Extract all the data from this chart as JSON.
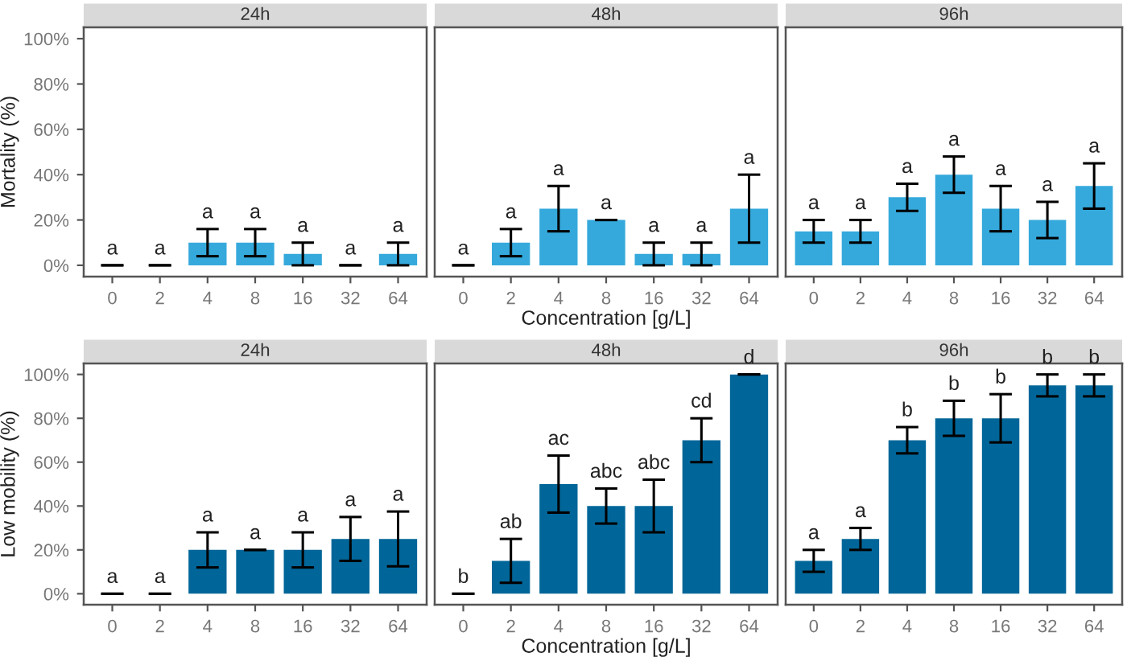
{
  "chart_data": [
    {
      "type": "bar",
      "title": "24h",
      "ylabel": "Mortality (%)",
      "categories": [
        "0",
        "2",
        "4",
        "8",
        "16",
        "32",
        "64"
      ],
      "values": [
        0,
        0,
        10,
        10,
        5,
        0,
        5
      ],
      "errors": [
        0,
        0,
        6,
        6,
        5,
        0,
        5
      ],
      "color": "#35a9dc",
      "ylim": [
        -5,
        105
      ],
      "yticks": [
        {
          "value": 0,
          "label": "0%"
        },
        {
          "value": 20,
          "label": "20%"
        },
        {
          "value": 40,
          "label": "40%"
        },
        {
          "value": 60,
          "label": "60%"
        },
        {
          "value": 80,
          "label": "80%"
        },
        {
          "value": 100,
          "label": "100%"
        }
      ],
      "grid": false,
      "annotations": [
        {
          "text": "a",
          "x": "0",
          "y": 0
        },
        {
          "text": "a",
          "x": "2",
          "y": 0
        },
        {
          "text": "a",
          "x": "4",
          "y": 16
        },
        {
          "text": "a",
          "x": "8",
          "y": 16
        },
        {
          "text": "a",
          "x": "16",
          "y": 10
        },
        {
          "text": "a",
          "x": "32",
          "y": 0
        },
        {
          "text": "a",
          "x": "64",
          "y": 10
        }
      ]
    },
    {
      "type": "bar",
      "title": "48h",
      "xlabel": "Concentration [g/L]",
      "categories": [
        "0",
        "2",
        "4",
        "8",
        "16",
        "32",
        "64"
      ],
      "values": [
        0,
        10,
        25,
        20,
        5,
        5,
        25
      ],
      "errors": [
        0,
        6,
        10,
        0,
        5,
        5,
        15
      ],
      "color": "#35a9dc",
      "ylim": [
        -5,
        105
      ],
      "tick_labels": "x",
      "grid": false,
      "annotations": [
        {
          "text": "a",
          "x": "0",
          "y": 0
        },
        {
          "text": "a",
          "x": "2",
          "y": 16
        },
        {
          "text": "a",
          "x": "4",
          "y": 35
        },
        {
          "text": "a",
          "x": "8",
          "y": 20
        },
        {
          "text": "a",
          "x": "16",
          "y": 10
        },
        {
          "text": "a",
          "x": "32",
          "y": 10
        },
        {
          "text": "a",
          "x": "64",
          "y": 40
        }
      ]
    },
    {
      "type": "bar",
      "title": "96h",
      "categories": [
        "0",
        "2",
        "4",
        "8",
        "16",
        "32",
        "64"
      ],
      "values": [
        15,
        15,
        30,
        40,
        25,
        20,
        35
      ],
      "errors": [
        5,
        5,
        6,
        8,
        10,
        8,
        10
      ],
      "color": "#35a9dc",
      "ylim": [
        -5,
        105
      ],
      "tick_labels": "x",
      "grid": false,
      "annotations": [
        {
          "text": "a",
          "x": "0",
          "y": 20
        },
        {
          "text": "a",
          "x": "2",
          "y": 20
        },
        {
          "text": "a",
          "x": "4",
          "y": 36
        },
        {
          "text": "a",
          "x": "8",
          "y": 48
        },
        {
          "text": "a",
          "x": "16",
          "y": 35
        },
        {
          "text": "a",
          "x": "32",
          "y": 28
        },
        {
          "text": "a",
          "x": "64",
          "y": 45
        }
      ]
    },
    {
      "type": "bar",
      "title": "24h",
      "ylabel": "Low mobility (%)",
      "categories": [
        "0",
        "2",
        "4",
        "8",
        "16",
        "32",
        "64"
      ],
      "values": [
        0,
        0,
        20,
        20,
        20,
        25,
        25
      ],
      "errors": [
        0,
        0,
        8,
        0,
        8,
        10,
        12.5
      ],
      "color": "#006699",
      "ylim": [
        -5,
        105
      ],
      "yticks": [
        {
          "value": 0,
          "label": "0%"
        },
        {
          "value": 20,
          "label": "20%"
        },
        {
          "value": 40,
          "label": "40%"
        },
        {
          "value": 60,
          "label": "60%"
        },
        {
          "value": 80,
          "label": "80%"
        },
        {
          "value": 100,
          "label": "100%"
        }
      ],
      "grid": false,
      "annotations": [
        {
          "text": "a",
          "x": "0",
          "y": 0
        },
        {
          "text": "a",
          "x": "2",
          "y": 0
        },
        {
          "text": "a",
          "x": "4",
          "y": 28
        },
        {
          "text": "a",
          "x": "8",
          "y": 20
        },
        {
          "text": "a",
          "x": "16",
          "y": 28
        },
        {
          "text": "a",
          "x": "32",
          "y": 35
        },
        {
          "text": "a",
          "x": "64",
          "y": 37.5
        }
      ]
    },
    {
      "type": "bar",
      "title": "48h",
      "xlabel": "Concentration [g/L]",
      "categories": [
        "0",
        "2",
        "4",
        "8",
        "16",
        "32",
        "64"
      ],
      "values": [
        0,
        15,
        50,
        40,
        40,
        70,
        100
      ],
      "errors": [
        0,
        10,
        13,
        8,
        12,
        10,
        0
      ],
      "color": "#006699",
      "ylim": [
        -5,
        105
      ],
      "tick_labels": "x",
      "grid": false,
      "annotations": [
        {
          "text": "b",
          "x": "0",
          "y": 0
        },
        {
          "text": "ab",
          "x": "2",
          "y": 25
        },
        {
          "text": "ac",
          "x": "4",
          "y": 63
        },
        {
          "text": "abc",
          "x": "8",
          "y": 48
        },
        {
          "text": "abc",
          "x": "16",
          "y": 52
        },
        {
          "text": "cd",
          "x": "32",
          "y": 80
        },
        {
          "text": "d",
          "x": "64",
          "y": 100
        }
      ]
    },
    {
      "type": "bar",
      "title": "96h",
      "categories": [
        "0",
        "2",
        "4",
        "8",
        "16",
        "32",
        "64"
      ],
      "values": [
        15,
        25,
        70,
        80,
        80,
        95,
        95
      ],
      "errors": [
        5,
        5,
        6,
        8,
        11,
        5,
        5
      ],
      "color": "#006699",
      "ylim": [
        -5,
        105
      ],
      "tick_labels": "x",
      "grid": false,
      "annotations": [
        {
          "text": "a",
          "x": "0",
          "y": 20
        },
        {
          "text": "a",
          "x": "2",
          "y": 30
        },
        {
          "text": "b",
          "x": "4",
          "y": 76
        },
        {
          "text": "b",
          "x": "8",
          "y": 88
        },
        {
          "text": "b",
          "x": "16",
          "y": 91
        },
        {
          "text": "b",
          "x": "32",
          "y": 100
        },
        {
          "text": "b",
          "x": "64",
          "y": 100
        }
      ]
    }
  ]
}
